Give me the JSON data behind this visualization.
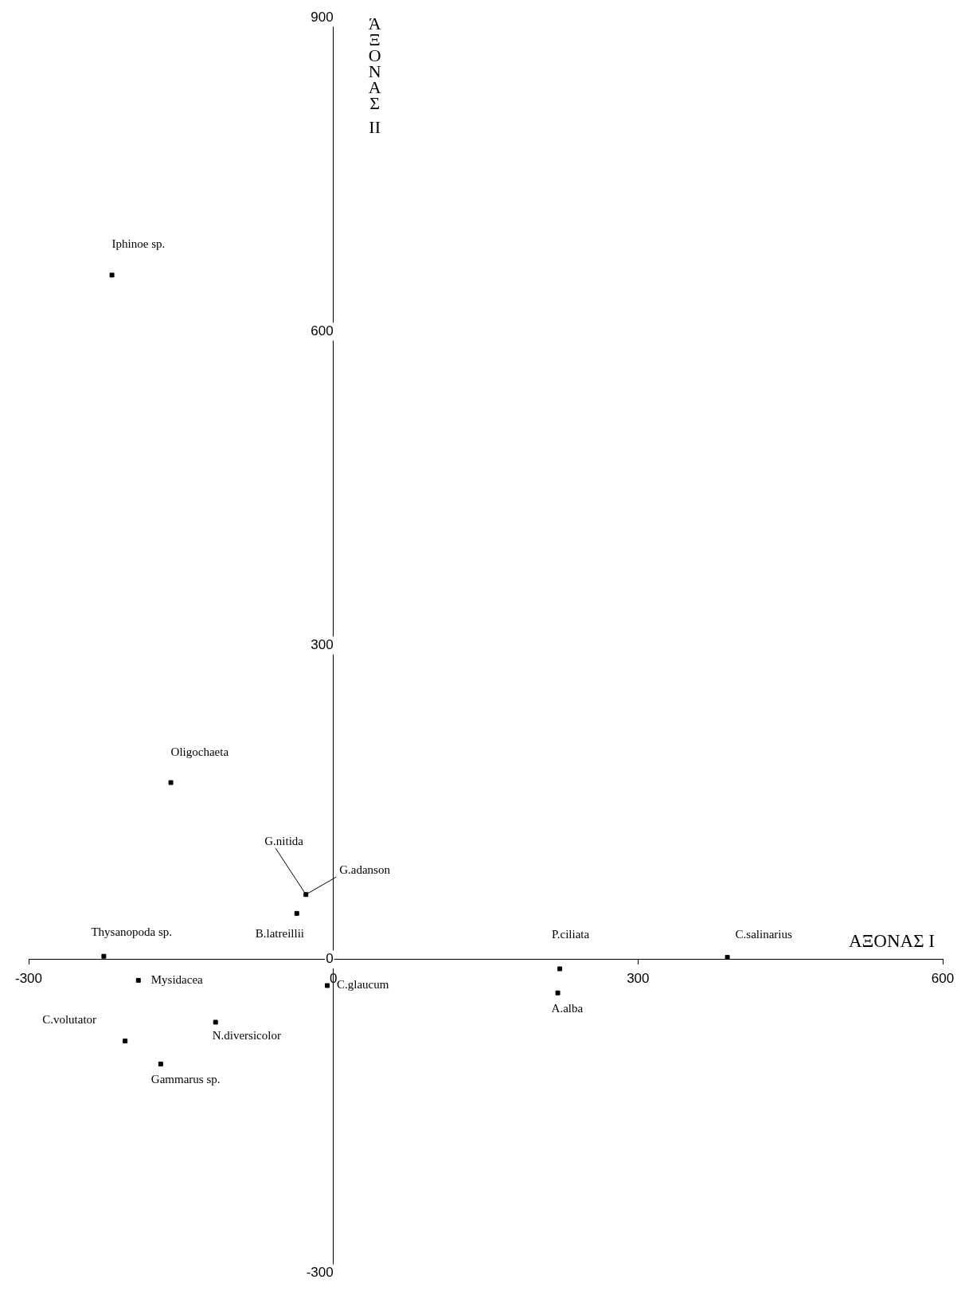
{
  "chart_data": {
    "type": "scatter",
    "xlabel": "ΑΞΟΝΑΣ I",
    "ylabel": "ΆΞΟΝΑΣ II",
    "x": [
      -218,
      -160,
      -27,
      -36,
      -226,
      -192,
      -6,
      -205,
      -116,
      -170,
      223,
      221,
      388
    ],
    "values": [
      654,
      169,
      62,
      44,
      3,
      -20,
      -25,
      -78,
      -60,
      -100,
      -9,
      -32,
      2
    ],
    "color": "#000000",
    "marker": "square",
    "grid": false,
    "xlim": [
      -300,
      600
    ],
    "xticks": [
      -300,
      0,
      300,
      600
    ],
    "ylim": [
      -300,
      900
    ],
    "yticks": [
      -300,
      0,
      300,
      600,
      900
    ],
    "annotations": [
      {
        "text": "Iphinoe sp.",
        "x": -218,
        "y": 654
      },
      {
        "text": "Oligochaeta",
        "x": -160,
        "y": 169
      },
      {
        "text": "G.nitida",
        "x": -27,
        "y": 62
      },
      {
        "text": "G.adanson",
        "x": -27,
        "y": 62
      },
      {
        "text": "B.latreillii",
        "x": -36,
        "y": 44
      },
      {
        "text": "Thysanopoda sp.",
        "x": -226,
        "y": 3
      },
      {
        "text": "Mysidacea",
        "x": -192,
        "y": -20
      },
      {
        "text": "C.glaucum",
        "x": -6,
        "y": -25
      },
      {
        "text": "C.volutator",
        "x": -205,
        "y": -78
      },
      {
        "text": "N.diversicolor",
        "x": -116,
        "y": -60
      },
      {
        "text": "Gammarus sp.",
        "x": -170,
        "y": -100
      },
      {
        "text": "P.ciliata",
        "x": 223,
        "y": -9
      },
      {
        "text": "A.alba",
        "x": 221,
        "y": -32
      },
      {
        "text": "C.salinarius",
        "x": 388,
        "y": 2
      }
    ]
  }
}
